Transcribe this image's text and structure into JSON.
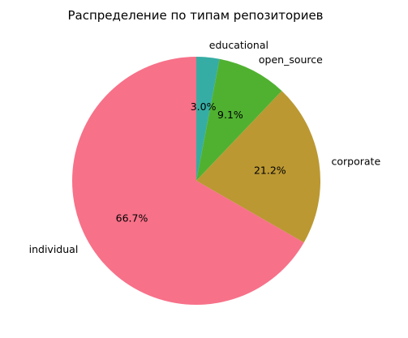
{
  "chart_data": {
    "type": "pie",
    "title": "Распределение по типам репозиториев",
    "slices": [
      {
        "label": "educational",
        "value": 3.0,
        "pct_label": "3.0%",
        "color": "#36ada4"
      },
      {
        "label": "open_source",
        "value": 9.1,
        "pct_label": "9.1%",
        "color": "#50b131"
      },
      {
        "label": "corporate",
        "value": 21.2,
        "pct_label": "21.2%",
        "color": "#bb9832"
      },
      {
        "label": "individual",
        "value": 66.7,
        "pct_label": "66.7%",
        "color": "#f77189"
      }
    ],
    "start_angle": 90,
    "direction": "clockwise",
    "legend": false
  }
}
